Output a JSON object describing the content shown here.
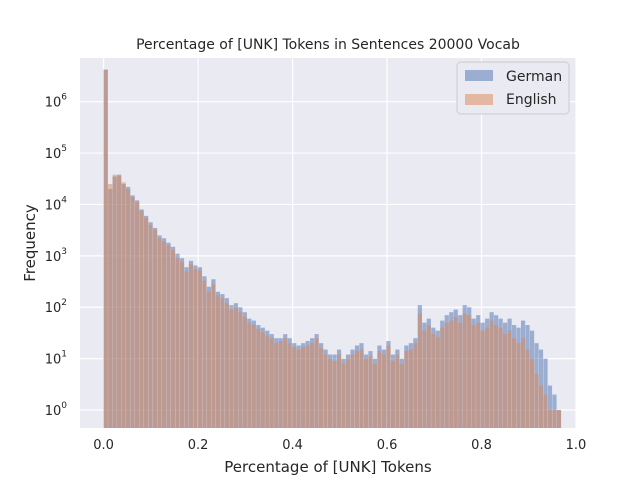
{
  "chart_data": {
    "type": "bar",
    "title": "Percentage of [UNK] Tokens in Sentences 20000 Vocab",
    "xlabel": "Percentage of [UNK] Tokens",
    "ylabel": "Frequency",
    "xlim": [
      -0.05,
      1.0
    ],
    "ylim_log10": [
      -0.35,
      6.85
    ],
    "yscale": "log",
    "bin_width": 0.0095,
    "grid": true,
    "legend_position": "top-right",
    "x_ticks": [
      {
        "value": 0.0,
        "label": "0.0"
      },
      {
        "value": 0.2,
        "label": "0.2"
      },
      {
        "value": 0.4,
        "label": "0.4"
      },
      {
        "value": 0.6,
        "label": "0.6"
      },
      {
        "value": 0.8,
        "label": "0.8"
      },
      {
        "value": 1.0,
        "label": "1.0"
      }
    ],
    "y_ticks": [
      {
        "exp": 0,
        "base": "10",
        "sup": "0"
      },
      {
        "exp": 1,
        "base": "10",
        "sup": "1"
      },
      {
        "exp": 2,
        "base": "10",
        "sup": "2"
      },
      {
        "exp": 3,
        "base": "10",
        "sup": "3"
      },
      {
        "exp": 4,
        "base": "10",
        "sup": "4"
      },
      {
        "exp": 5,
        "base": "10",
        "sup": "5"
      },
      {
        "exp": 6,
        "base": "10",
        "sup": "6"
      }
    ],
    "x": [
      0.0,
      0.0095,
      0.019,
      0.0285,
      0.038,
      0.0475,
      0.057,
      0.0665,
      0.076,
      0.0855,
      0.095,
      0.1045,
      0.114,
      0.1235,
      0.133,
      0.1425,
      0.152,
      0.1615,
      0.171,
      0.1805,
      0.19,
      0.1995,
      0.209,
      0.2185,
      0.228,
      0.2375,
      0.247,
      0.2565,
      0.266,
      0.2755,
      0.285,
      0.2945,
      0.304,
      0.3135,
      0.323,
      0.3325,
      0.342,
      0.3515,
      0.361,
      0.3705,
      0.38,
      0.3895,
      0.399,
      0.4085,
      0.418,
      0.4275,
      0.437,
      0.4465,
      0.456,
      0.4655,
      0.475,
      0.4845,
      0.494,
      0.5035,
      0.513,
      0.5225,
      0.532,
      0.5415,
      0.551,
      0.5605,
      0.57,
      0.5795,
      0.589,
      0.5985,
      0.608,
      0.6175,
      0.627,
      0.6365,
      0.646,
      0.6555,
      0.665,
      0.6745,
      0.684,
      0.6935,
      0.703,
      0.7125,
      0.722,
      0.7315,
      0.741,
      0.7505,
      0.76,
      0.7695,
      0.779,
      0.7885,
      0.798,
      0.8075,
      0.817,
      0.8265,
      0.836,
      0.8455,
      0.855,
      0.8645,
      0.874,
      0.8835,
      0.893,
      0.9025,
      0.912,
      0.9215,
      0.931,
      0.9405,
      0.95,
      0.9595
    ],
    "series": [
      {
        "name": "German",
        "color": "#4c72b0",
        "values": [
          4200000,
          20000,
          35000,
          38000,
          25000,
          22000,
          15000,
          12000,
          8000,
          6000,
          4500,
          3500,
          2500,
          2200,
          1800,
          1500,
          1100,
          900,
          600,
          800,
          650,
          600,
          400,
          250,
          350,
          200,
          180,
          150,
          110,
          120,
          100,
          80,
          60,
          55,
          45,
          40,
          35,
          30,
          25,
          25,
          30,
          25,
          20,
          18,
          20,
          22,
          25,
          30,
          20,
          15,
          12,
          12,
          15,
          10,
          12,
          15,
          18,
          20,
          12,
          14,
          10,
          18,
          15,
          22,
          12,
          15,
          10,
          18,
          20,
          25,
          110,
          50,
          60,
          40,
          35,
          55,
          70,
          80,
          90,
          70,
          110,
          100,
          60,
          70,
          50,
          60,
          80,
          70,
          60,
          50,
          60,
          45,
          40,
          55,
          45,
          35,
          20,
          15,
          10,
          3,
          2,
          1
        ]
      },
      {
        "name": "English",
        "color": "#dd8452",
        "values": [
          4200000,
          25000,
          38000,
          36000,
          27000,
          20000,
          14000,
          11000,
          7500,
          5500,
          4000,
          3200,
          2200,
          1900,
          1600,
          1300,
          900,
          750,
          500,
          700,
          550,
          520,
          330,
          200,
          280,
          170,
          150,
          120,
          90,
          100,
          80,
          65,
          50,
          45,
          38,
          33,
          28,
          25,
          20,
          22,
          25,
          20,
          17,
          15,
          17,
          18,
          20,
          25,
          16,
          12,
          10,
          9,
          12,
          8,
          10,
          12,
          14,
          15,
          10,
          11,
          8,
          14,
          12,
          18,
          9,
          12,
          8,
          14,
          15,
          20,
          75,
          35,
          45,
          30,
          26,
          40,
          50,
          55,
          65,
          50,
          75,
          70,
          45,
          50,
          35,
          40,
          55,
          45,
          40,
          30,
          35,
          25,
          20,
          25,
          15,
          10,
          5,
          3,
          2,
          1,
          1,
          1
        ]
      }
    ]
  }
}
